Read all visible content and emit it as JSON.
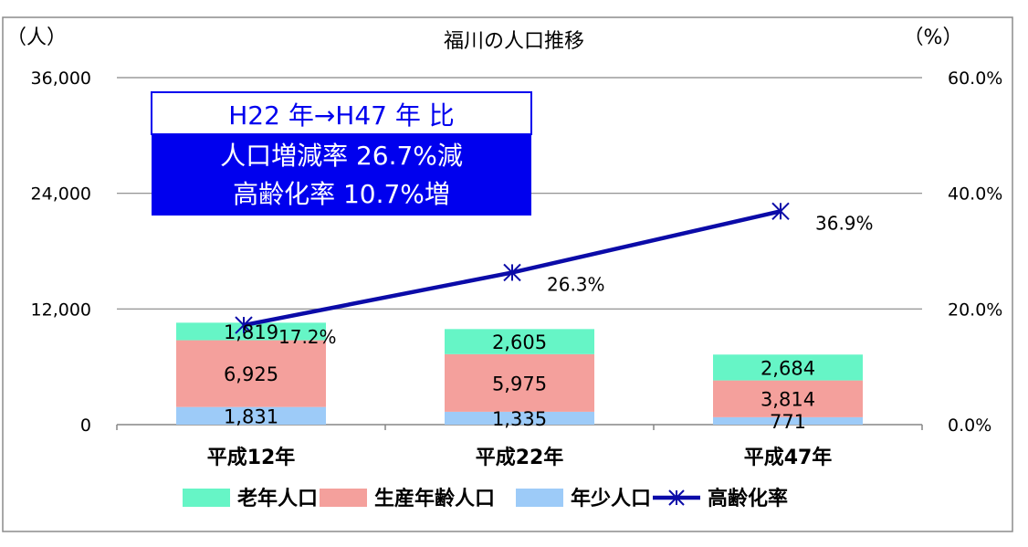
{
  "chart_data": {
    "type": "bar",
    "title": "福川の人口推移",
    "y_unit_left": "（人）",
    "y_unit_right": "（%）",
    "categories": [
      "平成12年",
      "平成22年",
      "平成47年"
    ],
    "stacked": true,
    "series": [
      {
        "name": "年少人口",
        "values": [
          1831,
          1335,
          771
        ],
        "labels": [
          "1,831",
          "1,335",
          "771"
        ],
        "color": "#9dcbf8"
      },
      {
        "name": "生産年齢人口",
        "values": [
          6925,
          5975,
          3814
        ],
        "labels": [
          "6,925",
          "5,975",
          "3,814"
        ],
        "color": "#f4a09c"
      },
      {
        "name": "老年人口",
        "values": [
          1819,
          2605,
          2684
        ],
        "labels": [
          "1,819",
          "2,605",
          "2,684"
        ],
        "color": "#66f5c6"
      }
    ],
    "line_series": {
      "name": "高齢化率",
      "values": [
        17.2,
        26.3,
        36.9
      ],
      "labels": [
        "17.2%",
        "26.3%",
        "36.9%"
      ],
      "axis": "right",
      "color": "#0b0ba8"
    },
    "y_left": {
      "min": 0,
      "max": 36000,
      "ticks": [
        0,
        12000,
        24000,
        36000
      ],
      "tick_labels": [
        "0",
        "12,000",
        "24,000",
        "36,000"
      ]
    },
    "y_right": {
      "min": 0,
      "max": 60,
      "ticks": [
        0,
        20,
        40,
        60
      ],
      "tick_labels": [
        "0.0%",
        "20.0%",
        "40.0%",
        "60.0%"
      ]
    },
    "grid": true,
    "legend": [
      {
        "label": "老年人口",
        "kind": "box",
        "color": "#66f5c6"
      },
      {
        "label": "生産年齢人口",
        "kind": "box",
        "color": "#f4a09c"
      },
      {
        "label": "年少人口",
        "kind": "box",
        "color": "#9dcbf8"
      },
      {
        "label": "高齢化率",
        "kind": "line",
        "color": "#0b0ba8"
      }
    ],
    "legend_position": "bottom",
    "annotation": {
      "lines": [
        "H22 年→H47 年  比",
        "人口増減率    26.7%減",
        "高齢化率    10.7%増"
      ],
      "header_bg": "#ffffff",
      "body_bg": "#0000ee",
      "body_text_color": "#ffffff"
    }
  }
}
